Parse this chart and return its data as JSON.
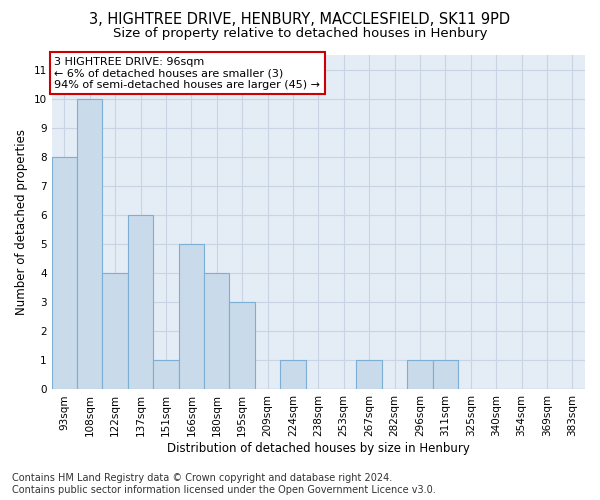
{
  "title1": "3, HIGHTREE DRIVE, HENBURY, MACCLESFIELD, SK11 9PD",
  "title2": "Size of property relative to detached houses in Henbury",
  "xlabel": "Distribution of detached houses by size in Henbury",
  "ylabel": "Number of detached properties",
  "categories": [
    "93sqm",
    "108sqm",
    "122sqm",
    "137sqm",
    "151sqm",
    "166sqm",
    "180sqm",
    "195sqm",
    "209sqm",
    "224sqm",
    "238sqm",
    "253sqm",
    "267sqm",
    "282sqm",
    "296sqm",
    "311sqm",
    "325sqm",
    "340sqm",
    "354sqm",
    "369sqm",
    "383sqm"
  ],
  "values": [
    8,
    10,
    4,
    6,
    1,
    5,
    4,
    3,
    0,
    1,
    0,
    0,
    1,
    0,
    1,
    1,
    0,
    0,
    0,
    0,
    0
  ],
  "bar_color": "#c9daea",
  "bar_edge_color": "#7bafd4",
  "annotation_box_text": "3 HIGHTREE DRIVE: 96sqm\n← 6% of detached houses are smaller (3)\n94% of semi-detached houses are larger (45) →",
  "annotation_box_edge_color": "#cc0000",
  "annotation_box_face_color": "#ffffff",
  "ylim": [
    0,
    11.5
  ],
  "yticks": [
    0,
    1,
    2,
    3,
    4,
    5,
    6,
    7,
    8,
    9,
    10,
    11
  ],
  "grid_color": "#c8d4e4",
  "bg_color": "#e4ecf5",
  "footnote": "Contains HM Land Registry data © Crown copyright and database right 2024.\nContains public sector information licensed under the Open Government Licence v3.0.",
  "title1_fontsize": 10.5,
  "title2_fontsize": 9.5,
  "xlabel_fontsize": 8.5,
  "ylabel_fontsize": 8.5,
  "tick_fontsize": 7.5,
  "annot_fontsize": 8,
  "footnote_fontsize": 7
}
